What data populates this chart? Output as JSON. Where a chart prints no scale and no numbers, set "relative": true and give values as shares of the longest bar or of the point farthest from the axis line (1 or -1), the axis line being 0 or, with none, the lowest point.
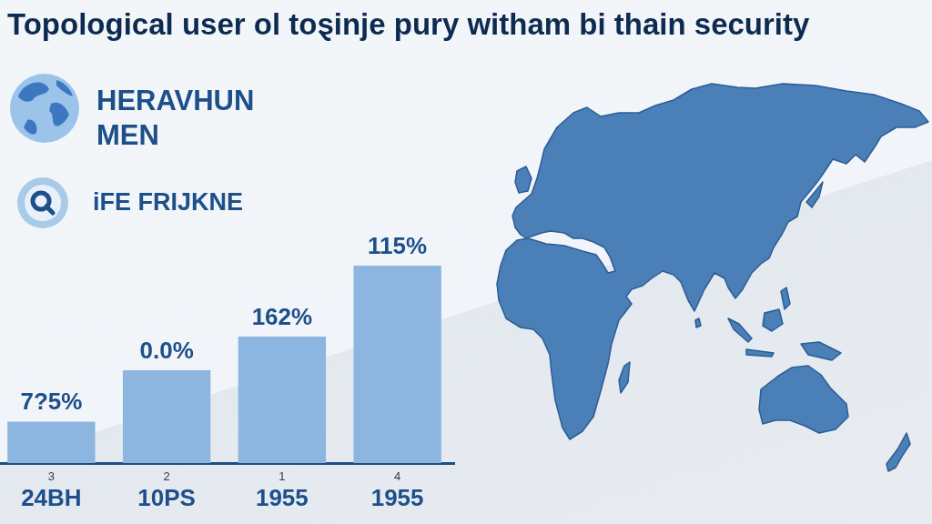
{
  "chart_data": {
    "type": "bar",
    "title": "Topological user ol toȿinje pury witham bi thain security",
    "categories": [
      "3\n24BH",
      "2\n10PS",
      "1\n1955",
      "4\n1955"
    ],
    "values": [
      0.21,
      0.47,
      0.64,
      1
    ],
    "color": "#8cb5df",
    "relative": true,
    "annotations": [
      "HERAVHUN MEN",
      "iFE FRIJKNE",
      {
        "text": "7?5%",
        "x": "3\n24BH",
        "y": 0.21
      },
      {
        "text": "0.0%",
        "x": "2\n10PS",
        "y": 0.47
      },
      {
        "text": "162%",
        "x": "1\n1955",
        "y": 0.64
      },
      {
        "text": "115%",
        "x": "4\n1955",
        "y": 1
      }
    ]
  }
}
